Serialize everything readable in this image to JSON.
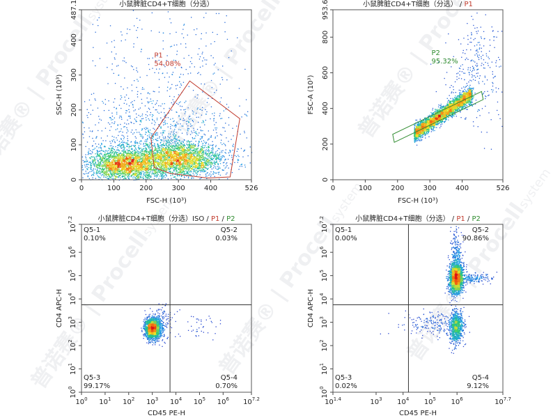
{
  "watermark": {
    "brand": "Procell",
    "brand_suffix": "system",
    "chinese": "普诺赛",
    "reg": "®"
  },
  "chart_data": [
    {
      "id": "p1",
      "type": "scatter",
      "subtype": "flow-cytometry-density",
      "title": "小鼠脾脏CD4+T细胞（分选）",
      "title_gates": [],
      "xlabel": "FSC-H (10³)",
      "ylabel": "SSC-H (10³)",
      "xscale": "linear",
      "yscale": "linear",
      "xlim": [
        0,
        526
      ],
      "ylim": [
        0,
        487.1
      ],
      "xticks": [
        0,
        100,
        200,
        300,
        400,
        526
      ],
      "xtick_labels": [
        "0",
        "100",
        "200",
        "300",
        "400",
        "526"
      ],
      "yticks": [
        0,
        100,
        200,
        300,
        400,
        487.1
      ],
      "ytick_labels": [
        "0",
        "100",
        "200",
        "300",
        "400",
        "487.1"
      ],
      "clusters": [
        {
          "cx": 300,
          "cy": 60,
          "sx": 70,
          "sy": 25,
          "n": 2600
        },
        {
          "cx": 130,
          "cy": 45,
          "sx": 55,
          "sy": 22,
          "n": 2200
        },
        {
          "cx": 220,
          "cy": 110,
          "sx": 120,
          "sy": 70,
          "n": 900
        },
        {
          "cx": 260,
          "cy": 280,
          "sx": 150,
          "sy": 140,
          "n": 450
        }
      ],
      "gate": {
        "name": "P1",
        "percent": "54.08%",
        "color": "#c0392b",
        "label_at": [
          225,
          350
        ],
        "polygon": [
          [
            225,
            35
          ],
          [
            215,
            120
          ],
          [
            335,
            283
          ],
          [
            490,
            175
          ],
          [
            460,
            8
          ],
          [
            390,
            5
          ],
          [
            275,
            18
          ]
        ]
      }
    },
    {
      "id": "p2",
      "type": "scatter",
      "subtype": "flow-cytometry-density",
      "title": "小鼠脾脏CD4+T细胞（分选）",
      "title_gates": [
        {
          "text": "P1",
          "color": "#c0392b"
        }
      ],
      "xlabel": "FSC-H (10³)",
      "ylabel": "FSC-A (10³)",
      "xscale": "linear",
      "yscale": "linear",
      "xlim": [
        0,
        526
      ],
      "ylim": [
        0,
        953.6
      ],
      "xticks": [
        0,
        100,
        200,
        300,
        400,
        526
      ],
      "xtick_labels": [
        "0",
        "100",
        "200",
        "300",
        "400",
        "526"
      ],
      "yticks": [
        0,
        200,
        400,
        600,
        800,
        953.6
      ],
      "ytick_labels": [
        "0",
        "200",
        "400",
        "600",
        "800",
        "953.6"
      ],
      "clusters": [
        {
          "diag": true,
          "x0": 250,
          "x1": 430,
          "slope": 1.27,
          "intercept": -60,
          "spread": 22,
          "n": 3200
        },
        {
          "cx": 430,
          "cy": 560,
          "sx": 45,
          "sy": 140,
          "n": 220
        },
        {
          "cx": 450,
          "cy": 760,
          "sx": 30,
          "sy": 90,
          "n": 60
        }
      ],
      "gate": {
        "name": "P2",
        "percent": "95.32%",
        "color": "#2e8b2e",
        "label_at": [
          305,
          700
        ],
        "polygon": [
          [
            185,
            255
          ],
          [
            190,
            210
          ],
          [
            465,
            450
          ],
          [
            460,
            495
          ]
        ]
      }
    },
    {
      "id": "p3",
      "type": "scatter",
      "subtype": "flow-cytometry-quadrant",
      "title": "小鼠脾脏CD4+T细胞（分选）ISO",
      "title_gates": [
        {
          "text": "P1",
          "color": "#c0392b"
        },
        {
          "text": "P2",
          "color": "#2e8b2e"
        }
      ],
      "xlabel": "CD45 PE-H",
      "ylabel": "CD4 APC-H",
      "xscale": "log",
      "yscale": "log",
      "xlim": [
        0,
        7.2
      ],
      "ylim": [
        0,
        7.2
      ],
      "xticks": [
        0,
        1,
        2,
        3,
        4,
        5,
        6,
        7.2
      ],
      "xtick_exps": [
        "0",
        "1",
        "2",
        "3",
        "4",
        "5",
        "6",
        "7.2"
      ],
      "yticks": [
        0,
        1,
        2,
        3,
        4,
        5,
        6,
        7.2
      ],
      "ytick_exps": [
        "0",
        "1",
        "2",
        "3",
        "4",
        "5",
        "6",
        "7.2"
      ],
      "quadrant_split": [
        3.75,
        3.75
      ],
      "clusters": [
        {
          "cx": 3.0,
          "cy": 2.75,
          "sx": 0.16,
          "sy": 0.22,
          "n": 2200
        },
        {
          "cx": 3.4,
          "cy": 3.0,
          "sx": 0.25,
          "sy": 0.4,
          "n": 120
        },
        {
          "cx": 4.8,
          "cy": 2.8,
          "sx": 0.6,
          "sy": 0.3,
          "n": 40
        }
      ],
      "quadrants": [
        {
          "name": "Q5-1",
          "value": "0.10%",
          "pos": "top-left"
        },
        {
          "name": "Q5-2",
          "value": "0.03%",
          "pos": "top-right"
        },
        {
          "name": "Q5-3",
          "value": "99.17%",
          "pos": "bottom-left"
        },
        {
          "name": "Q5-4",
          "value": "0.70%",
          "pos": "bottom-right"
        }
      ]
    },
    {
      "id": "p4",
      "type": "scatter",
      "subtype": "flow-cytometry-quadrant",
      "title": "小鼠脾脏CD4+T细胞（分选）",
      "title_gates": [
        {
          "text": "P1",
          "color": "#c0392b"
        },
        {
          "text": "P2",
          "color": "#2e8b2e"
        }
      ],
      "xlabel": "CD45 PE-H",
      "ylabel": "CD4 APC-H",
      "xscale": "log",
      "yscale": "log",
      "xlim": [
        1.4,
        7.7
      ],
      "ylim": [
        0,
        7.2
      ],
      "xticks": [
        1.4,
        3,
        4,
        5,
        6,
        7.7
      ],
      "xtick_exps": [
        "1.4",
        "3",
        "4",
        "5",
        "6",
        "7.7"
      ],
      "yticks": [
        0,
        1,
        2,
        3,
        4,
        5,
        6,
        7.2
      ],
      "ytick_exps": [
        "0",
        "1",
        "2",
        "3",
        "4",
        "5",
        "6",
        "7.2"
      ],
      "quadrant_split": [
        4.2,
        3.75
      ],
      "clusters": [
        {
          "cx": 5.95,
          "cy": 4.9,
          "sx": 0.12,
          "sy": 0.3,
          "n": 2400
        },
        {
          "cx": 5.95,
          "cy": 2.8,
          "sx": 0.12,
          "sy": 0.35,
          "n": 900
        },
        {
          "cx": 5.95,
          "cy": 5.9,
          "sx": 0.1,
          "sy": 0.5,
          "n": 250
        },
        {
          "cx": 6.6,
          "cy": 4.9,
          "sx": 0.3,
          "sy": 0.12,
          "n": 180
        },
        {
          "cx": 5.4,
          "cy": 2.9,
          "sx": 0.5,
          "sy": 0.25,
          "n": 160
        },
        {
          "cx": 4.7,
          "cy": 3.0,
          "sx": 0.6,
          "sy": 0.3,
          "n": 50
        }
      ],
      "quadrants": [
        {
          "name": "Q5-1",
          "value": "0.00%",
          "pos": "top-left"
        },
        {
          "name": "Q5-2",
          "value": "90.86%",
          "pos": "top-right"
        },
        {
          "name": "Q5-3",
          "value": "0.02%",
          "pos": "bottom-left"
        },
        {
          "name": "Q5-4",
          "value": "9.12%",
          "pos": "bottom-right"
        }
      ]
    }
  ]
}
